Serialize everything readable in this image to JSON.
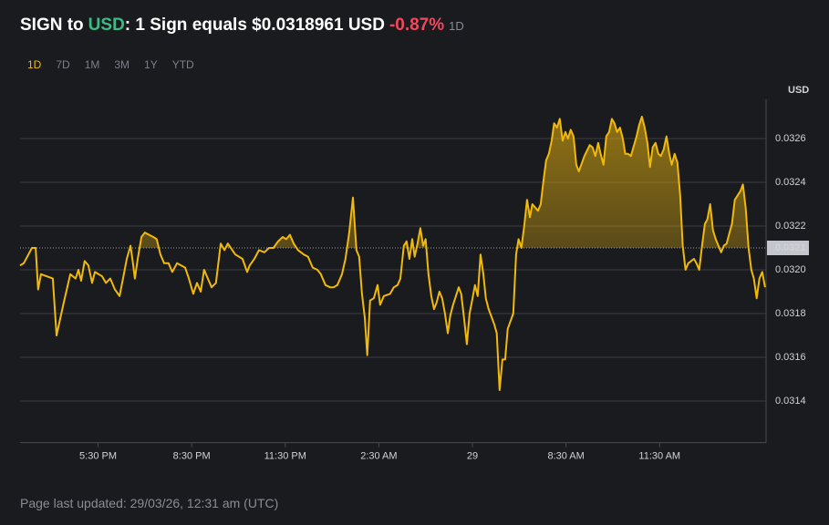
{
  "header": {
    "title": [
      "SIGN to",
      "USD",
      ": 1 Sign equals $0.0318961 USD",
      "-0.87%",
      "1D"
    ]
  },
  "ranges": [
    "1D",
    "7D",
    "1M",
    "3M",
    "1Y",
    "YTD"
  ],
  "active_range": "1D",
  "chart_data": {
    "type": "area-line",
    "y_label": "USD",
    "color": "#f0b90b",
    "grid": true,
    "ylim": [
      0.03121,
      0.03278
    ],
    "yticks": [
      0.0314,
      0.0316,
      0.0318,
      {
        "value": 0.032,
        "label": "0.0320"
      },
      0.0322,
      0.0324,
      0.0326
    ],
    "xlim": [
      15,
      39
    ],
    "xticks": [
      {
        "value": 17.5,
        "label": "5:30 PM"
      },
      {
        "value": 20.5,
        "label": "8:30 PM"
      },
      {
        "value": 23.5,
        "label": "11:30 PM"
      },
      {
        "value": 26.5,
        "label": "2:30 AM"
      },
      {
        "value": 29.5,
        "label": "29"
      },
      {
        "value": 32.5,
        "label": "8:30 AM"
      },
      {
        "value": 35.5,
        "label": "11:30 AM"
      }
    ],
    "reference": 0.0321,
    "x": [
      15.0,
      15.12,
      15.38,
      15.5,
      15.58,
      15.67,
      16.05,
      16.17,
      16.4,
      16.61,
      16.78,
      16.87,
      16.96,
      17.07,
      17.19,
      17.31,
      17.4,
      17.63,
      17.75,
      17.89,
      18.04,
      18.19,
      18.3,
      18.42,
      18.54,
      18.62,
      18.68,
      18.77,
      18.89,
      19.0,
      19.27,
      19.38,
      19.5,
      19.62,
      19.76,
      19.88,
      20.03,
      20.29,
      20.41,
      20.55,
      20.67,
      20.79,
      20.9,
      21.02,
      21.14,
      21.28,
      21.43,
      21.55,
      21.66,
      21.9,
      22.13,
      22.28,
      22.36,
      22.51,
      22.66,
      22.83,
      22.98,
      23.12,
      23.27,
      23.42,
      23.53,
      23.65,
      23.77,
      23.91,
      24.09,
      24.23,
      24.38,
      24.53,
      24.64,
      24.79,
      24.94,
      25.05,
      25.17,
      25.32,
      25.43,
      25.55,
      25.67,
      25.78,
      25.87,
      25.96,
      26.05,
      26.13,
      26.22,
      26.34,
      26.46,
      26.54,
      26.66,
      26.86,
      26.98,
      27.1,
      27.19,
      27.3,
      27.39,
      27.48,
      27.57,
      27.65,
      27.74,
      27.83,
      27.92,
      28.0,
      28.09,
      28.18,
      28.27,
      28.35,
      28.44,
      28.53,
      28.62,
      28.71,
      28.79,
      28.88,
      29.06,
      29.14,
      29.23,
      29.32,
      29.41,
      29.49,
      29.58,
      29.67,
      29.76,
      29.85,
      29.93,
      30.02,
      30.2,
      30.28,
      30.37,
      30.46,
      30.55,
      30.63,
      30.81,
      30.9,
      30.98,
      31.07,
      31.16,
      31.25,
      31.34,
      31.42,
      31.6,
      31.69,
      31.77,
      31.86,
      31.95,
      32.04,
      32.12,
      32.21,
      32.3,
      32.39,
      32.48,
      32.56,
      32.65,
      32.74,
      32.83,
      32.91,
      33.09,
      33.26,
      33.35,
      33.44,
      33.53,
      33.61,
      33.7,
      33.79,
      33.88,
      33.97,
      34.05,
      34.14,
      34.23,
      34.32,
      34.4,
      34.49,
      34.58,
      34.76,
      34.84,
      34.93,
      35.02,
      35.11,
      35.19,
      35.28,
      35.37,
      35.46,
      35.54,
      35.63,
      35.72,
      35.81,
      35.89,
      35.98,
      36.07,
      36.16,
      36.24,
      36.33,
      36.42,
      36.6,
      36.68,
      36.77,
      36.86,
      36.95,
      37.03,
      37.12,
      37.21,
      37.3,
      37.47,
      37.56,
      37.65,
      37.74,
      37.82,
      37.91,
      38.0,
      38.09,
      38.17,
      38.26,
      38.35,
      38.44,
      38.52,
      38.61,
      38.7,
      38.79,
      38.88
    ],
    "values": [
      0.03202,
      0.03203,
      0.0321,
      0.0321,
      0.03191,
      0.03198,
      0.03196,
      0.0317,
      0.03185,
      0.03198,
      0.03196,
      0.032,
      0.03195,
      0.03204,
      0.03202,
      0.03194,
      0.03199,
      0.03197,
      0.03194,
      0.03196,
      0.03191,
      0.03188,
      0.03196,
      0.03205,
      0.03211,
      0.03203,
      0.03196,
      0.03205,
      0.03215,
      0.03217,
      0.03215,
      0.03214,
      0.03207,
      0.03203,
      0.03203,
      0.03199,
      0.03203,
      0.03201,
      0.03196,
      0.03189,
      0.03194,
      0.0319,
      0.032,
      0.03196,
      0.03192,
      0.03194,
      0.03212,
      0.03209,
      0.03212,
      0.03207,
      0.03205,
      0.03199,
      0.03202,
      0.03205,
      0.03209,
      0.03208,
      0.0321,
      0.0321,
      0.03213,
      0.03215,
      0.03214,
      0.03216,
      0.03212,
      0.03209,
      0.03207,
      0.03206,
      0.03201,
      0.032,
      0.03198,
      0.03193,
      0.03192,
      0.03192,
      0.03193,
      0.03198,
      0.03205,
      0.03217,
      0.03233,
      0.03209,
      0.03206,
      0.03189,
      0.03178,
      0.03161,
      0.03186,
      0.03187,
      0.03193,
      0.03184,
      0.03188,
      0.03189,
      0.03192,
      0.03193,
      0.03196,
      0.03211,
      0.03213,
      0.03205,
      0.03214,
      0.03206,
      0.03212,
      0.03219,
      0.03211,
      0.03214,
      0.03198,
      0.03188,
      0.03182,
      0.03185,
      0.0319,
      0.03187,
      0.0318,
      0.03171,
      0.03179,
      0.03184,
      0.03192,
      0.03189,
      0.03178,
      0.03166,
      0.0318,
      0.03186,
      0.03193,
      0.03188,
      0.03207,
      0.03198,
      0.03187,
      0.03182,
      0.03175,
      0.03171,
      0.03145,
      0.03159,
      0.03159,
      0.03173,
      0.0318,
      0.03207,
      0.03214,
      0.0321,
      0.0322,
      0.03232,
      0.03224,
      0.0323,
      0.03227,
      0.0323,
      0.0324,
      0.0325,
      0.03253,
      0.03259,
      0.03267,
      0.03265,
      0.03269,
      0.03259,
      0.03263,
      0.0326,
      0.03264,
      0.03261,
      0.03248,
      0.03245,
      0.03252,
      0.03257,
      0.03256,
      0.03252,
      0.03258,
      0.03253,
      0.03248,
      0.03261,
      0.03263,
      0.03269,
      0.03267,
      0.03263,
      0.03265,
      0.0326,
      0.03253,
      0.03253,
      0.03252,
      0.03261,
      0.03266,
      0.0327,
      0.03265,
      0.03258,
      0.03247,
      0.03256,
      0.03258,
      0.03253,
      0.03252,
      0.03255,
      0.03261,
      0.03253,
      0.03248,
      0.03253,
      0.03249,
      0.03234,
      0.03211,
      0.032,
      0.03203,
      0.03205,
      0.03203,
      0.032,
      0.03211,
      0.03221,
      0.03223,
      0.0323,
      0.03218,
      0.03214,
      0.03208,
      0.03211,
      0.03212,
      0.03217,
      0.03221,
      0.03232,
      0.03234,
      0.03236,
      0.03239,
      0.03228,
      0.0321,
      0.032,
      0.03196,
      0.03187,
      0.03196,
      0.03199,
      0.03192
    ]
  },
  "footer": {
    "updated": "Page last updated: 29/03/26, 12:31 am (UTC)"
  }
}
